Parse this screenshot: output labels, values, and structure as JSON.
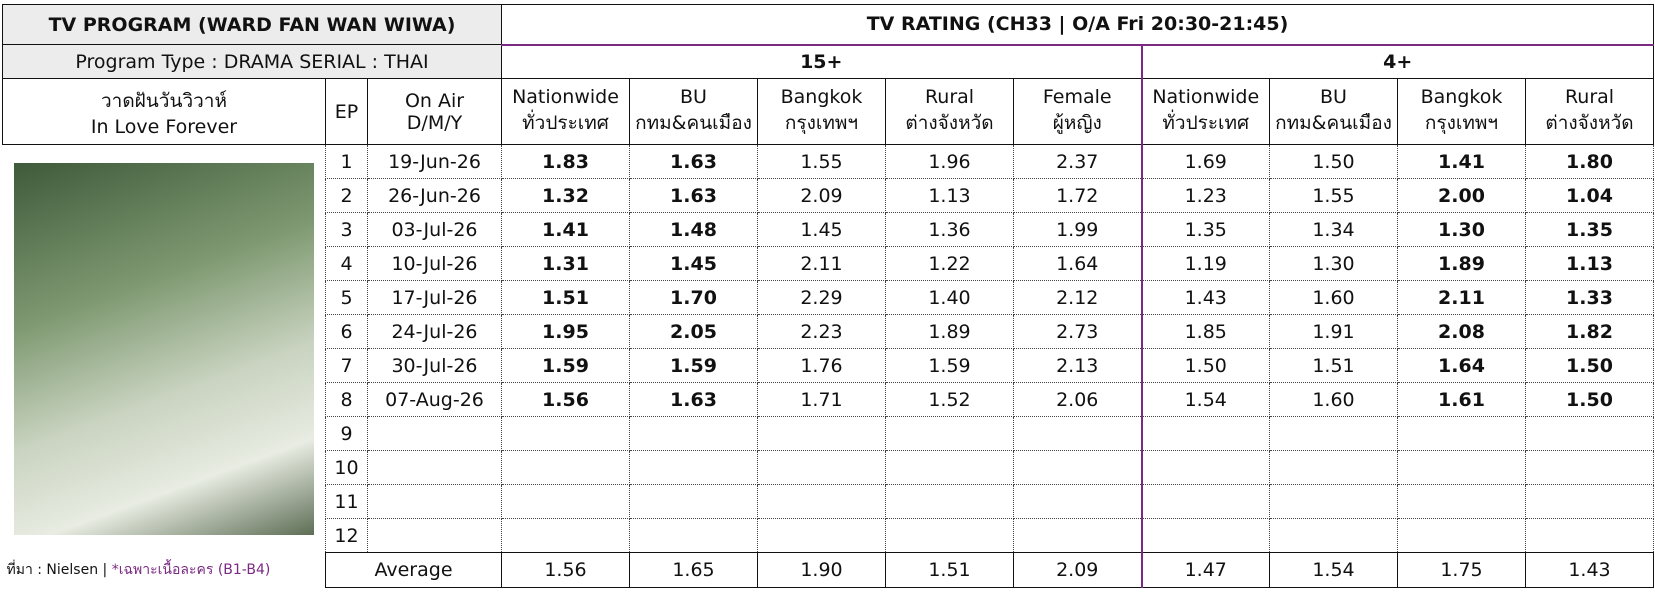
{
  "header": {
    "title": "TV PROGRAM (WARD FAN WAN WIWA)",
    "program_type": "Program Type : DRAMA SERIAL : THAI",
    "rating_title": "TV RATING (CH33 | O/A Fri 20:30-21:45)"
  },
  "program": {
    "name_thai": "วาดฝันวันวิวาห์",
    "name_en": "In Love Forever"
  },
  "columns": {
    "ep": "EP",
    "on_air": [
      "On Air",
      "D/M/Y"
    ]
  },
  "groups": [
    {
      "label": "15+",
      "columns": [
        [
          "Nationwide",
          "ทั่วประเทศ"
        ],
        [
          "BU",
          "กทม&คนเมือง"
        ],
        [
          "Bangkok",
          "กรุงเทพฯ"
        ],
        [
          "Rural",
          "ต่างจังหวัด"
        ],
        [
          "Female",
          "ผู้หญิง"
        ]
      ]
    },
    {
      "label": "4+",
      "columns": [
        [
          "Nationwide",
          "ทั่วประเทศ"
        ],
        [
          "BU",
          "กทม&คนเมือง"
        ],
        [
          "Bangkok",
          "กรุงเทพฯ"
        ],
        [
          "Rural",
          "ต่างจังหวัด"
        ]
      ]
    }
  ],
  "bold_columns": [
    0,
    1,
    7,
    8
  ],
  "rows": [
    {
      "ep": 1,
      "date": "19-Jun-26",
      "values": [
        "1.83",
        "1.63",
        "1.55",
        "1.96",
        "2.37",
        "1.69",
        "1.50",
        "1.41",
        "1.80"
      ]
    },
    {
      "ep": 2,
      "date": "26-Jun-26",
      "values": [
        "1.32",
        "1.63",
        "2.09",
        "1.13",
        "1.72",
        "1.23",
        "1.55",
        "2.00",
        "1.04"
      ]
    },
    {
      "ep": 3,
      "date": "03-Jul-26",
      "values": [
        "1.41",
        "1.48",
        "1.45",
        "1.36",
        "1.99",
        "1.35",
        "1.34",
        "1.30",
        "1.35"
      ]
    },
    {
      "ep": 4,
      "date": "10-Jul-26",
      "values": [
        "1.31",
        "1.45",
        "2.11",
        "1.22",
        "1.64",
        "1.19",
        "1.30",
        "1.89",
        "1.13"
      ]
    },
    {
      "ep": 5,
      "date": "17-Jul-26",
      "values": [
        "1.51",
        "1.70",
        "2.29",
        "1.40",
        "2.12",
        "1.43",
        "1.60",
        "2.11",
        "1.33"
      ]
    },
    {
      "ep": 6,
      "date": "24-Jul-26",
      "values": [
        "1.95",
        "2.05",
        "2.23",
        "1.89",
        "2.73",
        "1.85",
        "1.91",
        "2.08",
        "1.82"
      ]
    },
    {
      "ep": 7,
      "date": "30-Jul-26",
      "values": [
        "1.59",
        "1.59",
        "1.76",
        "1.59",
        "2.13",
        "1.50",
        "1.51",
        "1.64",
        "1.50"
      ]
    },
    {
      "ep": 8,
      "date": "07-Aug-26",
      "values": [
        "1.56",
        "1.63",
        "1.71",
        "1.52",
        "2.06",
        "1.54",
        "1.60",
        "1.61",
        "1.50"
      ]
    },
    {
      "ep": 9
    },
    {
      "ep": 10
    },
    {
      "ep": 11
    },
    {
      "ep": 12
    }
  ],
  "average": {
    "label": "Average",
    "values": [
      "1.56",
      "1.65",
      "1.90",
      "1.51",
      "2.09",
      "1.47",
      "1.54",
      "1.75",
      "1.43"
    ]
  },
  "footer": {
    "source": "ที่มา : Nielsen |",
    "note": "*เฉพาะเนื้อละคร (B1-B4)"
  }
}
